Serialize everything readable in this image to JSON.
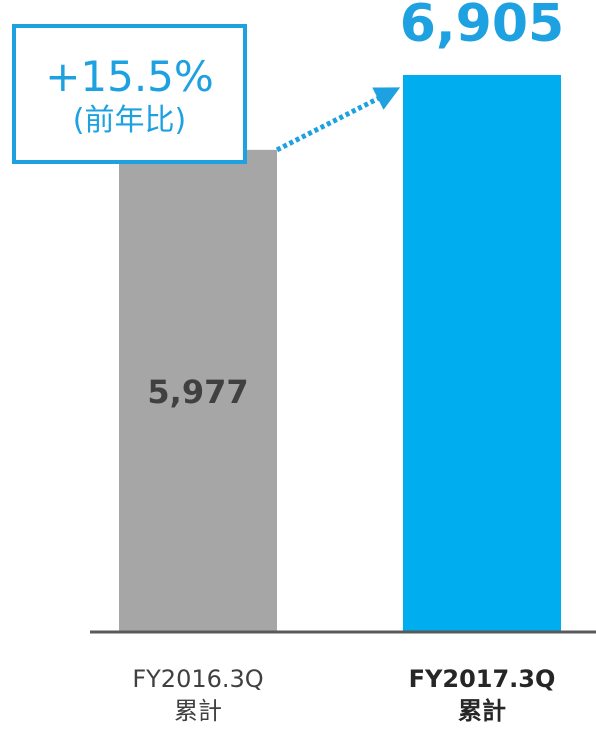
{
  "chart_data": {
    "type": "bar",
    "categories": [
      [
        "FY2016.3Q",
        "累計"
      ],
      [
        "FY2017.3Q",
        "累計"
      ]
    ],
    "values": [
      5977,
      6905
    ],
    "value_labels": [
      "5,977",
      "6,905"
    ],
    "colors": [
      "#A6A6A6",
      "#00AEEF"
    ],
    "value_label_colors": [
      "#404040",
      "#1DA1E1"
    ],
    "highlight_index": 1,
    "ylim": [
      0,
      7500
    ],
    "grid": false,
    "annotation": {
      "main": "+15.5%",
      "sub": "(前年比)",
      "color": "#1DA1E1"
    }
  }
}
